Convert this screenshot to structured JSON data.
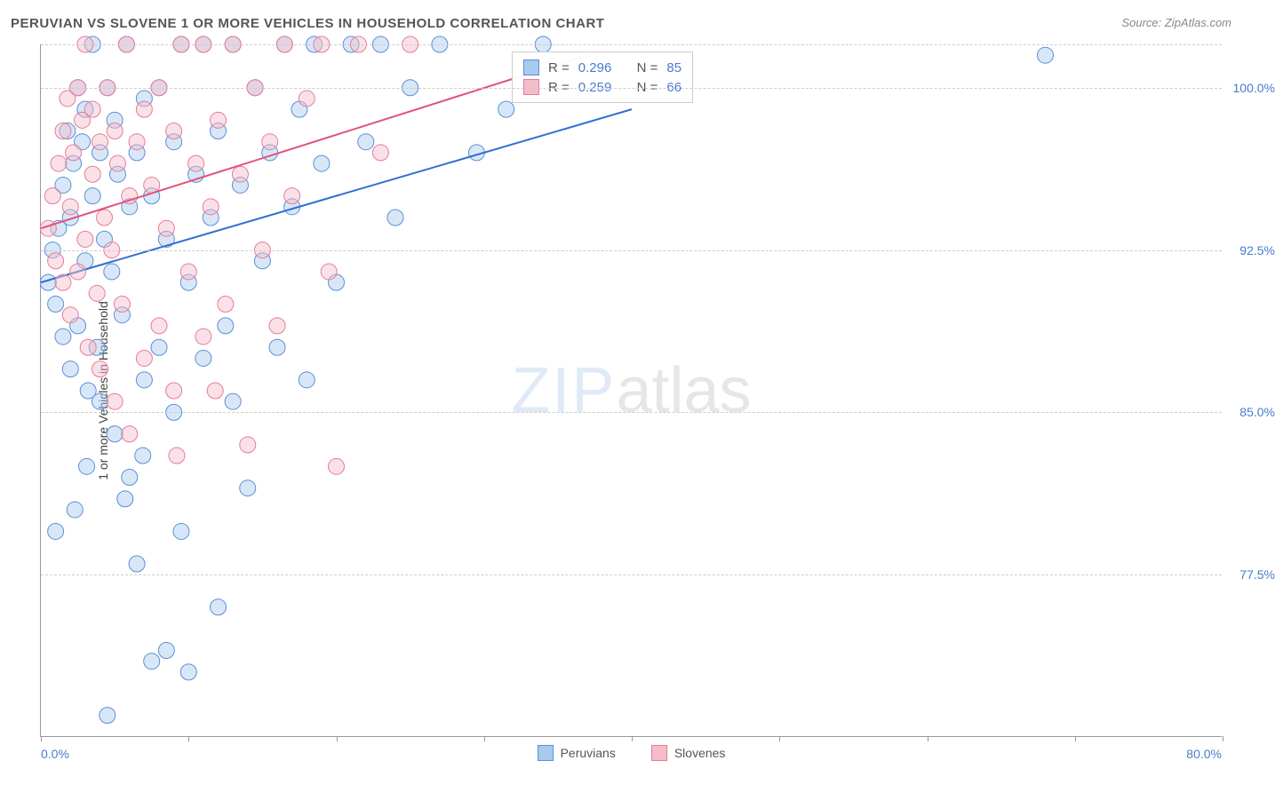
{
  "title": "PERUVIAN VS SLOVENE 1 OR MORE VEHICLES IN HOUSEHOLD CORRELATION CHART",
  "source": "Source: ZipAtlas.com",
  "watermark_a": "ZIP",
  "watermark_b": "atlas",
  "y_axis_title": "1 or more Vehicles in Household",
  "chart": {
    "type": "scatter",
    "xlim": [
      0,
      80
    ],
    "ylim": [
      70,
      102
    ],
    "x_tick_positions": [
      0,
      10,
      20,
      30,
      40,
      50,
      60,
      70,
      80
    ],
    "x_label_min": "0.0%",
    "x_label_max": "80.0%",
    "y_gridlines": [
      77.5,
      85.0,
      92.5,
      100.0,
      102.0
    ],
    "y_tick_labels": [
      "77.5%",
      "85.0%",
      "92.5%",
      "100.0%"
    ],
    "marker_radius": 9,
    "marker_opacity": 0.45,
    "background_color": "#ffffff",
    "grid_color": "#cccccc",
    "axis_color": "#999999",
    "series": [
      {
        "name": "Peruvians",
        "color_fill": "#a9c9ef",
        "color_stroke": "#5b8fd4",
        "r_value": "0.296",
        "n_value": "85",
        "trend": {
          "x1": 0,
          "y1": 91.0,
          "x2": 40,
          "y2": 99.0,
          "color": "#2f6fd0",
          "width": 2
        },
        "points": [
          [
            0.5,
            91.0
          ],
          [
            0.8,
            92.5
          ],
          [
            1.0,
            90.0
          ],
          [
            1.2,
            93.5
          ],
          [
            1.5,
            95.5
          ],
          [
            1.5,
            88.5
          ],
          [
            1.8,
            98.0
          ],
          [
            2.0,
            94.0
          ],
          [
            2.0,
            87.0
          ],
          [
            2.2,
            96.5
          ],
          [
            2.5,
            100.0
          ],
          [
            2.5,
            89.0
          ],
          [
            2.8,
            97.5
          ],
          [
            3.0,
            99.0
          ],
          [
            3.0,
            92.0
          ],
          [
            3.2,
            86.0
          ],
          [
            3.5,
            95.0
          ],
          [
            3.5,
            102.0
          ],
          [
            3.8,
            88.0
          ],
          [
            4.0,
            97.0
          ],
          [
            4.0,
            85.5
          ],
          [
            4.3,
            93.0
          ],
          [
            4.5,
            100.0
          ],
          [
            4.8,
            91.5
          ],
          [
            5.0,
            98.5
          ],
          [
            5.0,
            84.0
          ],
          [
            5.2,
            96.0
          ],
          [
            5.5,
            89.5
          ],
          [
            5.8,
            102.0
          ],
          [
            6.0,
            94.5
          ],
          [
            6.0,
            82.0
          ],
          [
            6.5,
            97.0
          ],
          [
            6.5,
            78.0
          ],
          [
            7.0,
            99.5
          ],
          [
            7.0,
            86.5
          ],
          [
            7.5,
            95.0
          ],
          [
            7.5,
            73.5
          ],
          [
            8.0,
            100.0
          ],
          [
            8.0,
            88.0
          ],
          [
            8.5,
            93.0
          ],
          [
            8.5,
            74.0
          ],
          [
            9.0,
            97.5
          ],
          [
            9.0,
            85.0
          ],
          [
            9.5,
            102.0
          ],
          [
            9.5,
            79.5
          ],
          [
            10.0,
            91.0
          ],
          [
            10.0,
            73.0
          ],
          [
            10.5,
            96.0
          ],
          [
            11.0,
            87.5
          ],
          [
            11.0,
            102.0
          ],
          [
            11.5,
            94.0
          ],
          [
            12.0,
            76.0
          ],
          [
            12.0,
            98.0
          ],
          [
            12.5,
            89.0
          ],
          [
            13.0,
            102.0
          ],
          [
            13.0,
            85.5
          ],
          [
            13.5,
            95.5
          ],
          [
            14.0,
            81.5
          ],
          [
            14.5,
            100.0
          ],
          [
            15.0,
            92.0
          ],
          [
            15.5,
            97.0
          ],
          [
            16.0,
            88.0
          ],
          [
            16.5,
            102.0
          ],
          [
            17.0,
            94.5
          ],
          [
            17.5,
            99.0
          ],
          [
            18.0,
            86.5
          ],
          [
            18.5,
            102.0
          ],
          [
            19.0,
            96.5
          ],
          [
            20.0,
            91.0
          ],
          [
            21.0,
            102.0
          ],
          [
            22.0,
            97.5
          ],
          [
            23.0,
            102.0
          ],
          [
            24.0,
            94.0
          ],
          [
            25.0,
            100.0
          ],
          [
            27.0,
            102.0
          ],
          [
            29.5,
            97.0
          ],
          [
            31.5,
            99.0
          ],
          [
            34.0,
            102.0
          ],
          [
            68.0,
            101.5
          ],
          [
            4.5,
            71.0
          ],
          [
            1.0,
            79.5
          ],
          [
            2.3,
            80.5
          ],
          [
            3.1,
            82.5
          ],
          [
            5.7,
            81.0
          ],
          [
            6.9,
            83.0
          ]
        ]
      },
      {
        "name": "Slovenes",
        "color_fill": "#f4bcc9",
        "color_stroke": "#e77b97",
        "r_value": "0.259",
        "n_value": "66",
        "trend": {
          "x1": 0,
          "y1": 93.5,
          "x2": 37,
          "y2": 101.5,
          "color": "#e3517a",
          "width": 2
        },
        "points": [
          [
            0.5,
            93.5
          ],
          [
            0.8,
            95.0
          ],
          [
            1.0,
            92.0
          ],
          [
            1.2,
            96.5
          ],
          [
            1.5,
            98.0
          ],
          [
            1.5,
            91.0
          ],
          [
            1.8,
            99.5
          ],
          [
            2.0,
            94.5
          ],
          [
            2.0,
            89.5
          ],
          [
            2.2,
            97.0
          ],
          [
            2.5,
            100.0
          ],
          [
            2.5,
            91.5
          ],
          [
            2.8,
            98.5
          ],
          [
            3.0,
            102.0
          ],
          [
            3.0,
            93.0
          ],
          [
            3.2,
            88.0
          ],
          [
            3.5,
            96.0
          ],
          [
            3.5,
            99.0
          ],
          [
            3.8,
            90.5
          ],
          [
            4.0,
            97.5
          ],
          [
            4.0,
            87.0
          ],
          [
            4.3,
            94.0
          ],
          [
            4.5,
            100.0
          ],
          [
            4.8,
            92.5
          ],
          [
            5.0,
            98.0
          ],
          [
            5.0,
            85.5
          ],
          [
            5.2,
            96.5
          ],
          [
            5.5,
            90.0
          ],
          [
            5.8,
            102.0
          ],
          [
            6.0,
            95.0
          ],
          [
            6.0,
            84.0
          ],
          [
            6.5,
            97.5
          ],
          [
            7.0,
            99.0
          ],
          [
            7.0,
            87.5
          ],
          [
            7.5,
            95.5
          ],
          [
            8.0,
            100.0
          ],
          [
            8.0,
            89.0
          ],
          [
            8.5,
            93.5
          ],
          [
            9.0,
            98.0
          ],
          [
            9.0,
            86.0
          ],
          [
            9.5,
            102.0
          ],
          [
            10.0,
            91.5
          ],
          [
            10.5,
            96.5
          ],
          [
            11.0,
            88.5
          ],
          [
            11.0,
            102.0
          ],
          [
            11.5,
            94.5
          ],
          [
            12.0,
            98.5
          ],
          [
            12.5,
            90.0
          ],
          [
            13.0,
            102.0
          ],
          [
            13.5,
            96.0
          ],
          [
            14.0,
            83.5
          ],
          [
            14.5,
            100.0
          ],
          [
            15.0,
            92.5
          ],
          [
            15.5,
            97.5
          ],
          [
            16.0,
            89.0
          ],
          [
            16.5,
            102.0
          ],
          [
            17.0,
            95.0
          ],
          [
            18.0,
            99.5
          ],
          [
            19.0,
            102.0
          ],
          [
            20.0,
            82.5
          ],
          [
            21.5,
            102.0
          ],
          [
            23.0,
            97.0
          ],
          [
            25.0,
            102.0
          ],
          [
            19.5,
            91.5
          ],
          [
            9.2,
            83.0
          ],
          [
            11.8,
            86.0
          ]
        ]
      }
    ]
  },
  "legend": {
    "series1_label": "Peruvians",
    "series2_label": "Slovenes"
  },
  "stats_labels": {
    "r": "R =",
    "n": "N ="
  }
}
